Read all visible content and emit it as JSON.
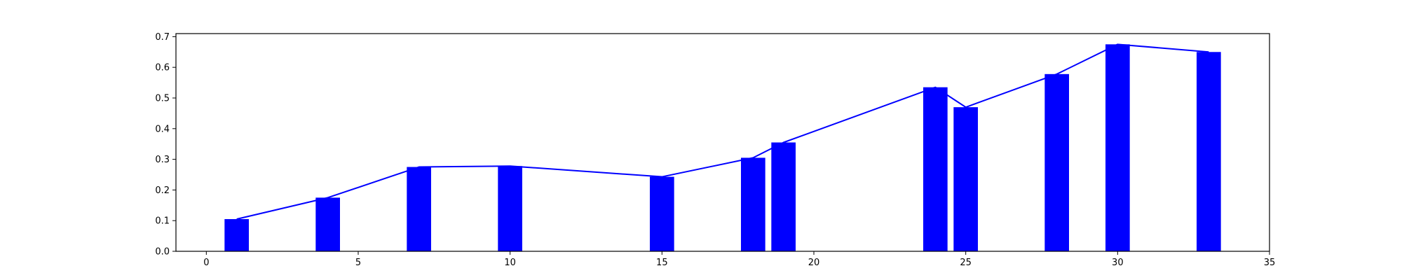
{
  "chart_data": {
    "type": "bar",
    "title": "",
    "xlabel": "",
    "ylabel": "",
    "xlim": [
      -1,
      35
    ],
    "ylim": [
      0,
      0.71
    ],
    "xticks": [
      0,
      5,
      10,
      15,
      20,
      25,
      30,
      35
    ],
    "yticks": [
      0.0,
      0.1,
      0.2,
      0.3,
      0.4,
      0.5,
      0.6,
      0.7
    ],
    "xtick_labels": [
      "0",
      "5",
      "10",
      "15",
      "20",
      "25",
      "30",
      "35"
    ],
    "ytick_labels": [
      "0.0",
      "0.1",
      "0.2",
      "0.3",
      "0.4",
      "0.5",
      "0.6",
      "0.7"
    ],
    "grid": false,
    "bar_width": 0.8,
    "color": "#0000ff",
    "line_color": "#0000ff",
    "series": [
      {
        "type": "bar",
        "x": [
          1,
          4,
          7,
          10,
          15,
          18,
          19,
          24,
          25,
          28,
          30,
          33
        ],
        "values": [
          0.105,
          0.175,
          0.275,
          0.278,
          0.243,
          0.305,
          0.355,
          0.535,
          0.47,
          0.578,
          0.675,
          0.65
        ]
      },
      {
        "type": "line",
        "x": [
          1,
          4,
          7,
          10,
          15,
          18,
          19,
          24,
          25,
          28,
          30,
          33
        ],
        "values": [
          0.105,
          0.175,
          0.275,
          0.278,
          0.243,
          0.305,
          0.355,
          0.535,
          0.47,
          0.578,
          0.675,
          0.65
        ]
      }
    ]
  }
}
